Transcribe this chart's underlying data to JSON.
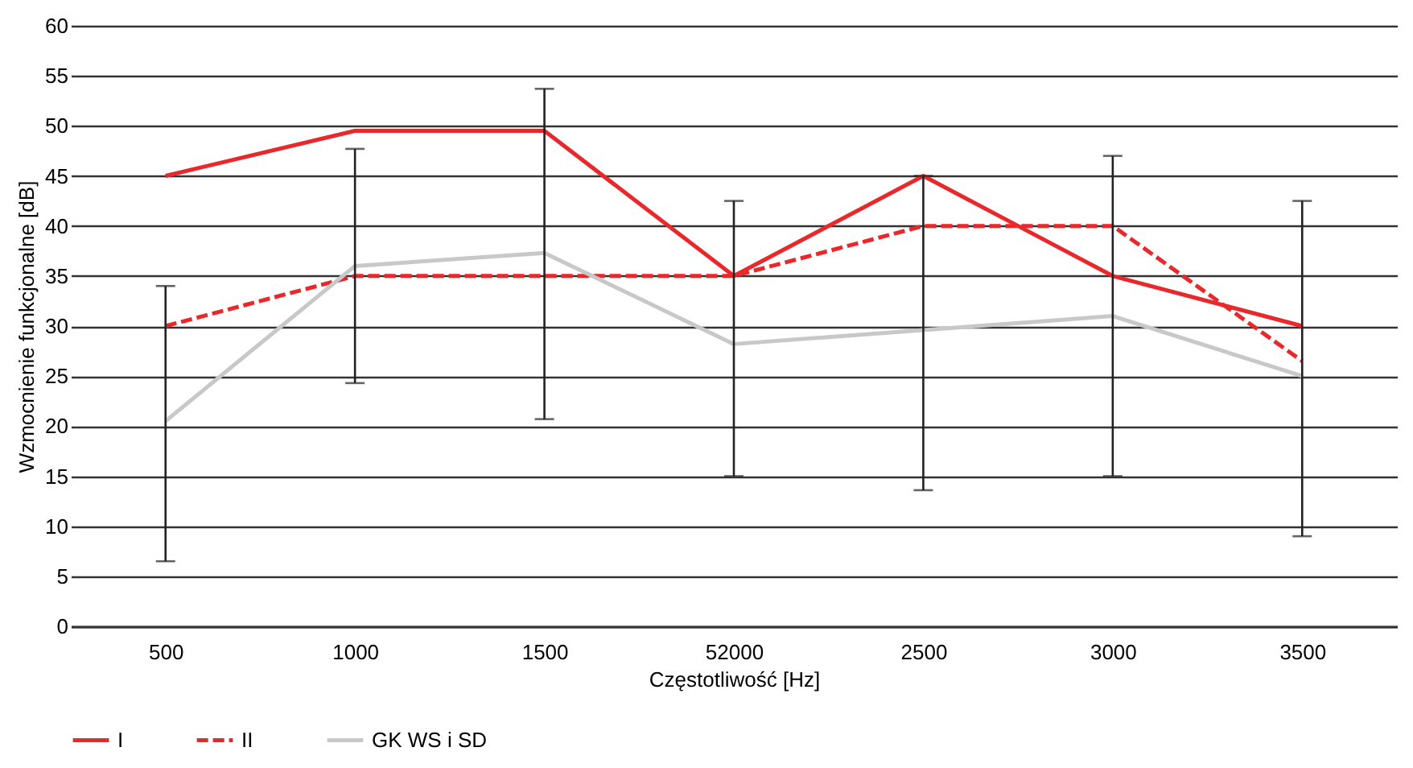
{
  "chart_data": {
    "type": "line",
    "xlabel": "Częstotliwość [Hz]",
    "ylabel": "Wzmocnienie funkcjonalne [dB]",
    "categories": [
      "500",
      "1000",
      "1500",
      "52000",
      "2500",
      "3000",
      "3500"
    ],
    "ylim": [
      0,
      60
    ],
    "yticks": [
      0,
      5,
      10,
      15,
      20,
      25,
      30,
      35,
      40,
      45,
      50,
      55,
      60
    ],
    "grid": "y",
    "legend": "bottom",
    "series": [
      {
        "name": "I",
        "color": "#e8282b",
        "line_style": "solid",
        "values": [
          45,
          49.5,
          49.5,
          35,
          45,
          35,
          30
        ]
      },
      {
        "name": "II",
        "color": "#e8282b",
        "line_style": "dashed",
        "values": [
          30,
          35,
          35,
          35,
          40,
          40,
          26.5
        ]
      },
      {
        "name": "GK WS i SD",
        "color": "#c8c8c8",
        "line_style": "solid",
        "values": [
          20.5,
          36,
          37.3,
          28.2,
          29.6,
          31,
          25
        ],
        "errors": [
          [
            6.5,
            34
          ],
          [
            24.3,
            47.7
          ],
          [
            20.7,
            53.7
          ],
          [
            15,
            42.5
          ],
          [
            13.6,
            45
          ],
          [
            15,
            47
          ],
          [
            9,
            42.5
          ]
        ]
      }
    ]
  }
}
